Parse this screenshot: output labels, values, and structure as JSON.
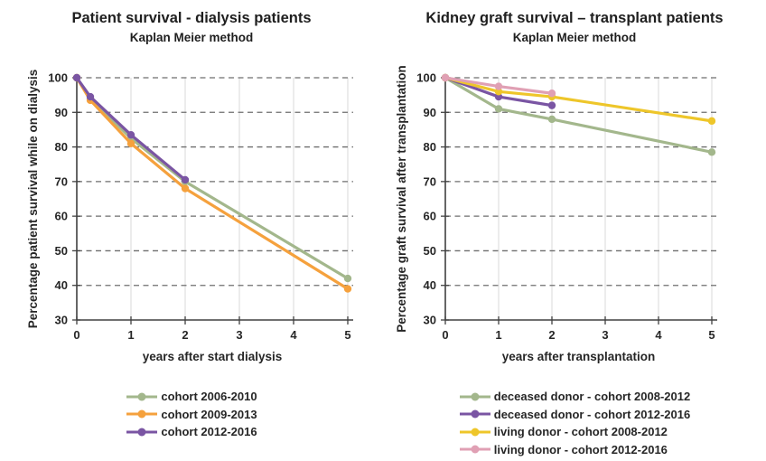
{
  "chart_data": [
    {
      "type": "line",
      "title": "Patient survival - dialysis patients",
      "subtitle": "Kaplan Meier method",
      "xlabel": "years after start dialysis",
      "ylabel": "Percentage patient survival while on dialysis",
      "xlim": [
        0,
        5
      ],
      "ylim": [
        30,
        100
      ],
      "xticks": [
        0,
        1,
        2,
        3,
        4,
        5
      ],
      "yticks": [
        30,
        40,
        50,
        60,
        70,
        80,
        90,
        100
      ],
      "grid": {
        "horizontal": "dashed",
        "vertical": "solid-light"
      },
      "legend_position": "bottom",
      "series": [
        {
          "name": "cohort 2006-2010",
          "color": "#a3b78c",
          "x": [
            0,
            0.25,
            1,
            2,
            5
          ],
          "values": [
            100,
            94,
            82.5,
            70,
            42
          ]
        },
        {
          "name": "cohort 2009-2013",
          "color": "#f5a13d",
          "x": [
            0,
            0.25,
            1,
            2,
            5
          ],
          "values": [
            100,
            93.5,
            81,
            68,
            39
          ]
        },
        {
          "name": "cohort 2012-2016",
          "color": "#7a55a3",
          "x": [
            0,
            0.25,
            1,
            2
          ],
          "values": [
            100,
            94.5,
            83.5,
            70.5
          ]
        }
      ]
    },
    {
      "type": "line",
      "title": "Kidney graft survival – transplant patients",
      "subtitle": "Kaplan Meier method",
      "xlabel": "years after transplantation",
      "ylabel": "Percentage graft survival after transplantation",
      "xlim": [
        0,
        5
      ],
      "ylim": [
        30,
        100
      ],
      "xticks": [
        0,
        1,
        2,
        3,
        4,
        5
      ],
      "yticks": [
        30,
        40,
        50,
        60,
        70,
        80,
        90,
        100
      ],
      "grid": {
        "horizontal": "dashed",
        "vertical": "solid-light"
      },
      "legend_position": "bottom",
      "series": [
        {
          "name": "deceased donor - cohort 2008-2012",
          "color": "#a3b78c",
          "x": [
            0,
            1,
            2,
            5
          ],
          "values": [
            100,
            91,
            88,
            78.5
          ]
        },
        {
          "name": "deceased donor - cohort 2012-2016",
          "color": "#7a55a3",
          "x": [
            0,
            1,
            2
          ],
          "values": [
            100,
            94.5,
            92
          ]
        },
        {
          "name": "living donor - cohort 2008-2012",
          "color": "#eec62a",
          "x": [
            0,
            1,
            2,
            5
          ],
          "values": [
            100,
            96,
            94.5,
            87.5
          ]
        },
        {
          "name": "living donor - cohort 2012-2016",
          "color": "#e0a0b4",
          "x": [
            0,
            1,
            2
          ],
          "values": [
            100,
            97.5,
            95.5
          ]
        }
      ]
    }
  ],
  "style_colors": {
    "axis": "#404040",
    "dashed_gridline": "#6e6e6e",
    "vertical_gridline": "#e0e0e0",
    "text": "#262626"
  }
}
